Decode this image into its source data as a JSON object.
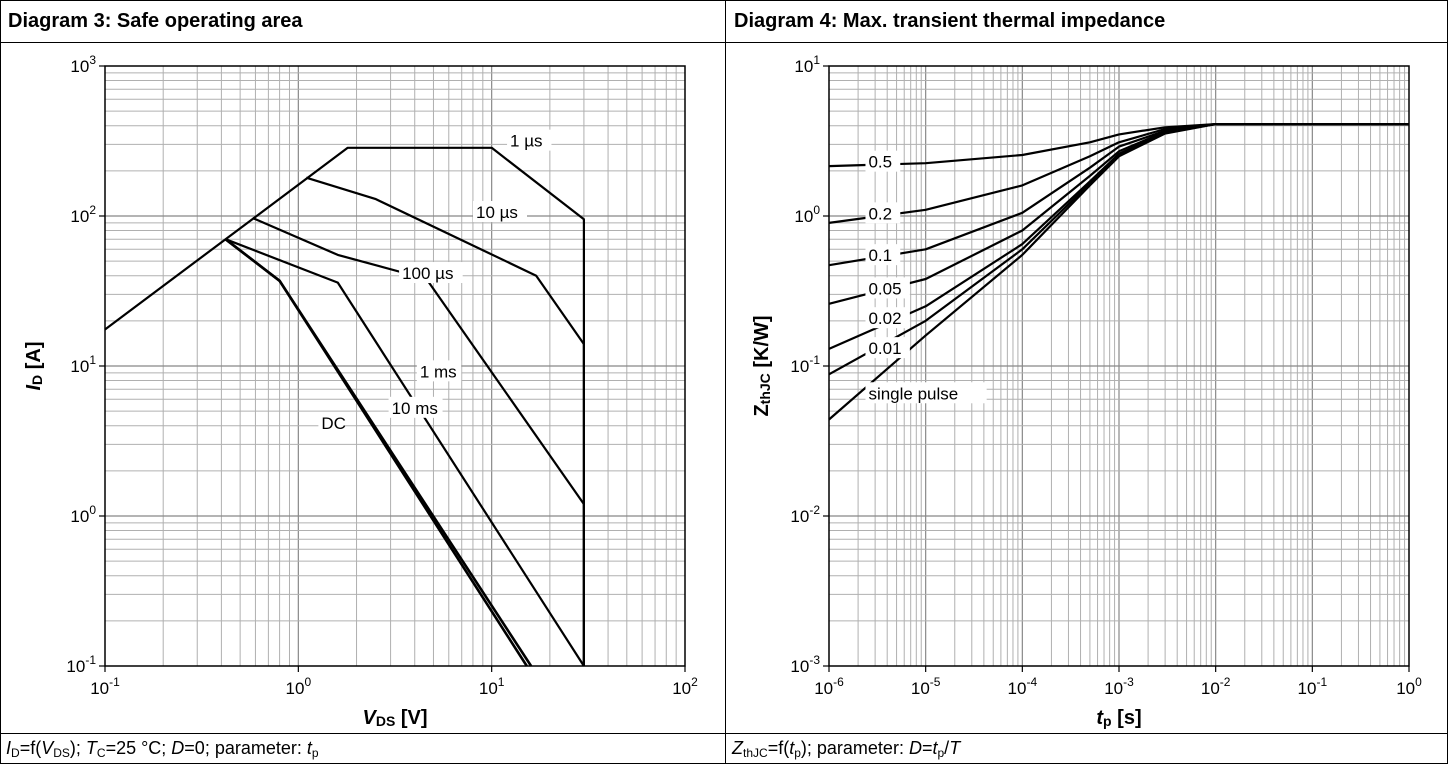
{
  "chart_data": [
    {
      "type": "line",
      "title": "Diagram 3: Safe operating area",
      "xlabel": "VDS [V]",
      "ylabel": "ID [A]",
      "x_scale": "log",
      "y_scale": "log",
      "xlim": [
        0.1,
        100
      ],
      "ylim": [
        0.1,
        1000
      ],
      "grid": true,
      "x_ticks": [
        {
          "value": 0.1,
          "base": "10",
          "exp": "-1"
        },
        {
          "value": 1,
          "base": "10",
          "exp": "0"
        },
        {
          "value": 10,
          "base": "10",
          "exp": "1"
        },
        {
          "value": 100,
          "base": "10",
          "exp": "2"
        }
      ],
      "y_ticks": [
        {
          "value": 0.1,
          "base": "10",
          "exp": "-1"
        },
        {
          "value": 1,
          "base": "10",
          "exp": "0"
        },
        {
          "value": 10,
          "base": "10",
          "exp": "1"
        },
        {
          "value": 100,
          "base": "10",
          "exp": "2"
        },
        {
          "value": 1000,
          "base": "10",
          "exp": "3"
        }
      ],
      "series": [
        {
          "name": "1 µs",
          "label_at": [
            12.3,
            290
          ],
          "points": [
            [
              0.1,
              17.5
            ],
            [
              1.8,
              285
            ],
            [
              10,
              285
            ],
            [
              30,
              95
            ],
            [
              30,
              0.1
            ]
          ]
        },
        {
          "name": "10 µs",
          "label_at": [
            8.2,
            97
          ],
          "points": [
            [
              1.1,
              180
            ],
            [
              2.5,
              130
            ],
            [
              17,
              40
            ],
            [
              30,
              14
            ],
            [
              30,
              0.1
            ]
          ]
        },
        {
          "name": "100 µs",
          "label_at": [
            3.4,
            38
          ],
          "points": [
            [
              0.58,
              97
            ],
            [
              1.6,
              55
            ],
            [
              4.6,
              38
            ],
            [
              30,
              1.2
            ],
            [
              30,
              0.1
            ]
          ]
        },
        {
          "name": "1 ms",
          "label_at": [
            4.2,
            8.4
          ],
          "points": [
            [
              0.42,
              70
            ],
            [
              1.6,
              36
            ],
            [
              30,
              0.1
            ]
          ]
        },
        {
          "name": "10 ms",
          "label_at": [
            3.0,
            4.8
          ],
          "points": [
            [
              0.42,
              70
            ],
            [
              0.8,
              37
            ],
            [
              15.2,
              0.1
            ]
          ]
        },
        {
          "name": "DC",
          "label_at": [
            1.3,
            3.8
          ],
          "points": [
            [
              0.42,
              70
            ],
            [
              0.8,
              37
            ],
            [
              16,
              0.1
            ]
          ]
        }
      ],
      "caption": {
        "t1": "I",
        "s1": "D",
        "t2": "=f(",
        "t3": "V",
        "s2": "DS",
        "t4": "); ",
        "t5": "T",
        "s3": "C",
        "t6": "=25 °C; ",
        "t7": "D",
        "t8": "=0; parameter: ",
        "t9": "t",
        "s4": "p"
      }
    },
    {
      "type": "line",
      "title": "Diagram 4: Max. transient thermal impedance",
      "xlabel": "tp [s]",
      "ylabel": "ZthJC [K/W]",
      "x_scale": "log",
      "y_scale": "log",
      "xlim": [
        1e-06,
        1
      ],
      "ylim": [
        0.001,
        10
      ],
      "grid": true,
      "x_ticks": [
        {
          "value": 1e-06,
          "base": "10",
          "exp": "-6"
        },
        {
          "value": 1e-05,
          "base": "10",
          "exp": "-5"
        },
        {
          "value": 0.0001,
          "base": "10",
          "exp": "-4"
        },
        {
          "value": 0.001,
          "base": "10",
          "exp": "-3"
        },
        {
          "value": 0.01,
          "base": "10",
          "exp": "-2"
        },
        {
          "value": 0.1,
          "base": "10",
          "exp": "-1"
        },
        {
          "value": 1,
          "base": "10",
          "exp": "0"
        }
      ],
      "y_ticks": [
        {
          "value": 0.001,
          "base": "10",
          "exp": "-3"
        },
        {
          "value": 0.01,
          "base": "10",
          "exp": "-2"
        },
        {
          "value": 0.1,
          "base": "10",
          "exp": "-1"
        },
        {
          "value": 1,
          "base": "10",
          "exp": "0"
        },
        {
          "value": 10,
          "base": "10",
          "exp": "1"
        }
      ],
      "series": [
        {
          "name": "0.5",
          "label_at": [
            2.5e-06,
            2.1
          ],
          "points": [
            [
              1e-06,
              2.15
            ],
            [
              1e-05,
              2.25
            ],
            [
              0.0001,
              2.55
            ],
            [
              0.0005,
              3.1
            ],
            [
              0.001,
              3.5
            ],
            [
              0.003,
              3.9
            ],
            [
              0.01,
              4.1
            ],
            [
              0.1,
              4.1
            ],
            [
              1,
              4.1
            ]
          ]
        },
        {
          "name": "0.2",
          "label_at": [
            2.5e-06,
            0.95
          ],
          "points": [
            [
              1e-06,
              0.9
            ],
            [
              1e-05,
              1.1
            ],
            [
              0.0001,
              1.6
            ],
            [
              0.0005,
              2.5
            ],
            [
              0.001,
              3.1
            ],
            [
              0.003,
              3.8
            ],
            [
              0.01,
              4.1
            ],
            [
              1,
              4.1
            ]
          ]
        },
        {
          "name": "0.1",
          "label_at": [
            2.5e-06,
            0.5
          ],
          "points": [
            [
              1e-06,
              0.47
            ],
            [
              1e-05,
              0.6
            ],
            [
              0.0001,
              1.05
            ],
            [
              0.0005,
              2.1
            ],
            [
              0.001,
              2.9
            ],
            [
              0.003,
              3.7
            ],
            [
              0.01,
              4.1
            ],
            [
              1,
              4.1
            ]
          ]
        },
        {
          "name": "0.05",
          "label_at": [
            2.5e-06,
            0.3
          ],
          "points": [
            [
              1e-06,
              0.26
            ],
            [
              1e-05,
              0.38
            ],
            [
              0.0001,
              0.8
            ],
            [
              0.0005,
              1.85
            ],
            [
              0.001,
              2.7
            ],
            [
              0.003,
              3.65
            ],
            [
              0.01,
              4.1
            ],
            [
              1,
              4.1
            ]
          ]
        },
        {
          "name": "0.02",
          "label_at": [
            2.5e-06,
            0.19
          ],
          "points": [
            [
              1e-06,
              0.13
            ],
            [
              1e-05,
              0.25
            ],
            [
              0.0001,
              0.65
            ],
            [
              0.0005,
              1.7
            ],
            [
              0.001,
              2.6
            ],
            [
              0.003,
              3.6
            ],
            [
              0.01,
              4.1
            ],
            [
              1,
              4.1
            ]
          ]
        },
        {
          "name": "0.01",
          "label_at": [
            2.5e-06,
            0.12
          ],
          "points": [
            [
              1e-06,
              0.088
            ],
            [
              1e-05,
              0.2
            ],
            [
              0.0001,
              0.6
            ],
            [
              0.0005,
              1.65
            ],
            [
              0.001,
              2.55
            ],
            [
              0.003,
              3.6
            ],
            [
              0.01,
              4.1
            ],
            [
              1,
              4.1
            ]
          ]
        },
        {
          "name": "single pulse",
          "label_at": [
            2.5e-06,
            0.06
          ],
          "points": [
            [
              1e-06,
              0.044
            ],
            [
              1e-05,
              0.16
            ],
            [
              0.0001,
              0.55
            ],
            [
              0.0005,
              1.6
            ],
            [
              0.001,
              2.5
            ],
            [
              0.003,
              3.55
            ],
            [
              0.01,
              4.1
            ],
            [
              1,
              4.1
            ]
          ]
        }
      ],
      "caption": {
        "t1": "Z",
        "s1": "thJC",
        "t2": "=f(",
        "t3": "t",
        "s2": "p",
        "t4": "); parameter: ",
        "t5": "D",
        "t6": "=",
        "t7": "t",
        "s3": "p",
        "t8": "/",
        "t9": "T"
      }
    }
  ]
}
